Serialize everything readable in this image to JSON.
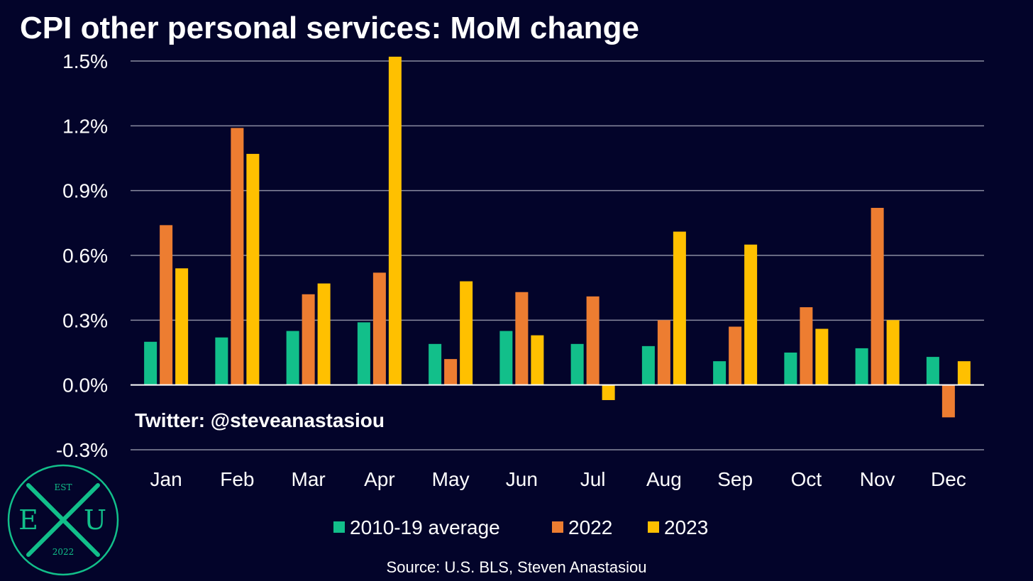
{
  "chart_data": {
    "type": "bar",
    "title": "CPI other personal services: MoM change",
    "categories": [
      "Jan",
      "Feb",
      "Mar",
      "Apr",
      "May",
      "Jun",
      "Jul",
      "Aug",
      "Sep",
      "Oct",
      "Nov",
      "Dec"
    ],
    "series": [
      {
        "name": "2010-19 average",
        "color": "#12bf8a",
        "values": [
          0.2,
          0.22,
          0.25,
          0.29,
          0.19,
          0.25,
          0.19,
          0.18,
          0.11,
          0.15,
          0.17,
          0.13
        ]
      },
      {
        "name": "2022",
        "color": "#ed7d31",
        "values": [
          0.74,
          1.19,
          0.42,
          0.52,
          0.12,
          0.43,
          0.41,
          0.3,
          0.27,
          0.36,
          0.82,
          -0.15
        ]
      },
      {
        "name": "2023",
        "color": "#ffc000",
        "values": [
          0.54,
          1.07,
          0.47,
          1.52,
          0.48,
          0.23,
          -0.07,
          0.71,
          0.65,
          0.26,
          0.3,
          0.11
        ]
      }
    ],
    "yticks": [
      1.5,
      1.2,
      0.9,
      0.6,
      0.3,
      0.0,
      -0.3
    ],
    "ytick_labels": [
      "1.5%",
      "1.2%",
      "0.9%",
      "0.6%",
      "0.3%",
      "0.0%",
      "-0.3%"
    ],
    "ylim": [
      -0.3,
      1.5
    ],
    "xlabel": "",
    "ylabel": "",
    "grid": true,
    "legend_position": "bottom-center"
  },
  "annotation": "Twitter: @steveanastasiou",
  "source": "Source: U.S. BLS, Steven Anastasiou",
  "logo": {
    "top": "EST",
    "left": "E",
    "right": "U",
    "bottom": "2022",
    "color": "#12bf8a"
  }
}
